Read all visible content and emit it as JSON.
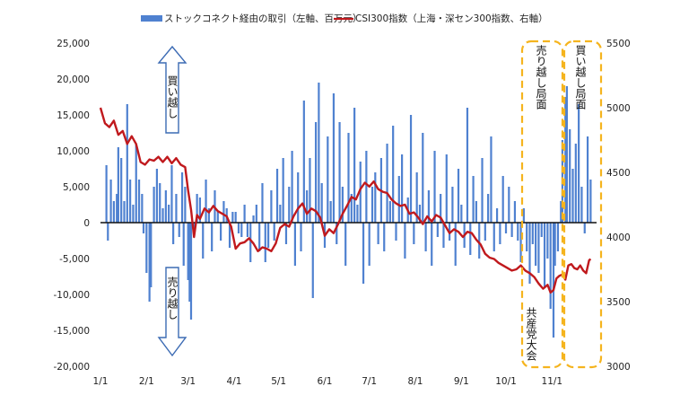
{
  "chart_data": {
    "type": "bar+line",
    "legend": [
      {
        "name": "ストックコネクト経由の取引（左軸、百万元）",
        "color": "#4f81d0"
      },
      {
        "name": "CSI300指数（上海・深セン300指数、右軸）",
        "color": "#c0191d"
      }
    ],
    "y_left": {
      "min": -20000,
      "max": 25000,
      "step": 5000,
      "ticks": [
        "25,000",
        "20,000",
        "15,000",
        "10,000",
        "5,000",
        "0",
        "-5,000",
        "-10,000",
        "-15,000",
        "-20,000"
      ]
    },
    "y_right": {
      "min": 3000,
      "max": 5500,
      "step": 500,
      "ticks": [
        "5500",
        "5000",
        "4500",
        "4000",
        "3500",
        "3000"
      ]
    },
    "x_ticks": [
      "1/1",
      "2/1",
      "3/1",
      "4/1",
      "5/1",
      "6/1",
      "7/1",
      "8/1",
      "9/1",
      "10/1",
      "11/1"
    ],
    "bars": [
      {
        "d": 4,
        "v": 8000
      },
      {
        "d": 5,
        "v": -2500
      },
      {
        "d": 7,
        "v": 6000
      },
      {
        "d": 9,
        "v": 3000
      },
      {
        "d": 11,
        "v": 4000
      },
      {
        "d": 12,
        "v": 10500
      },
      {
        "d": 14,
        "v": 9000
      },
      {
        "d": 16,
        "v": 3000
      },
      {
        "d": 18,
        "v": 16500
      },
      {
        "d": 20,
        "v": 6000
      },
      {
        "d": 22,
        "v": 2500
      },
      {
        "d": 24,
        "v": 11000
      },
      {
        "d": 26,
        "v": 6000
      },
      {
        "d": 28,
        "v": 4000
      },
      {
        "d": 29,
        "v": -1500
      },
      {
        "d": 31,
        "v": -7000
      },
      {
        "d": 33,
        "v": -11000
      },
      {
        "d": 34,
        "v": -9000
      },
      {
        "d": 36,
        "v": 5000
      },
      {
        "d": 38,
        "v": 7500
      },
      {
        "d": 40,
        "v": 5500
      },
      {
        "d": 42,
        "v": 2000
      },
      {
        "d": 44,
        "v": 4500
      },
      {
        "d": 46,
        "v": 2500
      },
      {
        "d": 48,
        "v": 8000
      },
      {
        "d": 49,
        "v": -3000
      },
      {
        "d": 51,
        "v": 4000
      },
      {
        "d": 53,
        "v": -2000
      },
      {
        "d": 55,
        "v": 7000
      },
      {
        "d": 56,
        "v": -6000
      },
      {
        "d": 57,
        "v": 5000
      },
      {
        "d": 59,
        "v": -8000
      },
      {
        "d": 60,
        "v": -11000
      },
      {
        "d": 61,
        "v": -13500
      },
      {
        "d": 63,
        "v": -2000
      },
      {
        "d": 65,
        "v": 4000
      },
      {
        "d": 67,
        "v": 3500
      },
      {
        "d": 69,
        "v": -5000
      },
      {
        "d": 71,
        "v": 6000
      },
      {
        "d": 73,
        "v": 2000
      },
      {
        "d": 75,
        "v": -4000
      },
      {
        "d": 77,
        "v": 4500
      },
      {
        "d": 79,
        "v": 1500
      },
      {
        "d": 81,
        "v": -2500
      },
      {
        "d": 83,
        "v": 3000
      },
      {
        "d": 85,
        "v": 2000
      },
      {
        "d": 87,
        "v": -3500
      },
      {
        "d": 89,
        "v": 1500
      },
      {
        "d": 91,
        "v": 1500
      },
      {
        "d": 93,
        "v": -1500
      },
      {
        "d": 95,
        "v": -2000
      },
      {
        "d": 97,
        "v": 2500
      },
      {
        "d": 99,
        "v": -2000
      },
      {
        "d": 101,
        "v": -5500
      },
      {
        "d": 103,
        "v": 1000
      },
      {
        "d": 105,
        "v": 2500
      },
      {
        "d": 107,
        "v": -4000
      },
      {
        "d": 109,
        "v": 5500
      },
      {
        "d": 111,
        "v": -5500
      },
      {
        "d": 113,
        "v": -3500
      },
      {
        "d": 115,
        "v": 4500
      },
      {
        "d": 117,
        "v": -2500
      },
      {
        "d": 119,
        "v": 7500
      },
      {
        "d": 121,
        "v": 2500
      },
      {
        "d": 123,
        "v": 9000
      },
      {
        "d": 125,
        "v": -3000
      },
      {
        "d": 127,
        "v": 5000
      },
      {
        "d": 129,
        "v": 10000
      },
      {
        "d": 131,
        "v": -6000
      },
      {
        "d": 133,
        "v": 7000
      },
      {
        "d": 135,
        "v": -4000
      },
      {
        "d": 137,
        "v": 17000
      },
      {
        "d": 139,
        "v": 4500
      },
      {
        "d": 141,
        "v": 9000
      },
      {
        "d": 143,
        "v": -10500
      },
      {
        "d": 145,
        "v": 14000
      },
      {
        "d": 147,
        "v": 19500
      },
      {
        "d": 149,
        "v": 5500
      },
      {
        "d": 151,
        "v": -3500
      },
      {
        "d": 153,
        "v": 12000
      },
      {
        "d": 155,
        "v": 3000
      },
      {
        "d": 157,
        "v": 18000
      },
      {
        "d": 159,
        "v": -3000
      },
      {
        "d": 161,
        "v": 14000
      },
      {
        "d": 163,
        "v": 5000
      },
      {
        "d": 165,
        "v": -6000
      },
      {
        "d": 167,
        "v": 12500
      },
      {
        "d": 169,
        "v": 4000
      },
      {
        "d": 171,
        "v": 16000
      },
      {
        "d": 173,
        "v": 2500
      },
      {
        "d": 175,
        "v": 8500
      },
      {
        "d": 177,
        "v": -8500
      },
      {
        "d": 179,
        "v": 10000
      },
      {
        "d": 181,
        "v": -6000
      },
      {
        "d": 183,
        "v": 5000
      },
      {
        "d": 185,
        "v": 7000
      },
      {
        "d": 187,
        "v": -3000
      },
      {
        "d": 189,
        "v": 9000
      },
      {
        "d": 191,
        "v": -4000
      },
      {
        "d": 193,
        "v": 11000
      },
      {
        "d": 195,
        "v": 3000
      },
      {
        "d": 197,
        "v": 13500
      },
      {
        "d": 199,
        "v": -2500
      },
      {
        "d": 201,
        "v": 6500
      },
      {
        "d": 203,
        "v": 9500
      },
      {
        "d": 205,
        "v": -5000
      },
      {
        "d": 207,
        "v": 3500
      },
      {
        "d": 209,
        "v": 15000
      },
      {
        "d": 211,
        "v": -3000
      },
      {
        "d": 213,
        "v": 7000
      },
      {
        "d": 215,
        "v": 2500
      },
      {
        "d": 217,
        "v": 12500
      },
      {
        "d": 219,
        "v": -4000
      },
      {
        "d": 221,
        "v": 4500
      },
      {
        "d": 223,
        "v": -6000
      },
      {
        "d": 225,
        "v": 10000
      },
      {
        "d": 227,
        "v": -2000
      },
      {
        "d": 229,
        "v": 4000
      },
      {
        "d": 231,
        "v": -3500
      },
      {
        "d": 233,
        "v": 9500
      },
      {
        "d": 235,
        "v": -2500
      },
      {
        "d": 237,
        "v": 5000
      },
      {
        "d": 239,
        "v": -6000
      },
      {
        "d": 241,
        "v": 7500
      },
      {
        "d": 243,
        "v": 2500
      },
      {
        "d": 245,
        "v": -3500
      },
      {
        "d": 247,
        "v": 16000
      },
      {
        "d": 249,
        "v": -4500
      },
      {
        "d": 251,
        "v": 6500
      },
      {
        "d": 253,
        "v": 3000
      },
      {
        "d": 255,
        "v": -5000
      },
      {
        "d": 257,
        "v": 9000
      },
      {
        "d": 259,
        "v": -2500
      },
      {
        "d": 261,
        "v": 4000
      },
      {
        "d": 263,
        "v": 12000
      },
      {
        "d": 265,
        "v": -4000
      },
      {
        "d": 267,
        "v": 2000
      },
      {
        "d": 269,
        "v": -3000
      },
      {
        "d": 271,
        "v": 6500
      },
      {
        "d": 273,
        "v": -1500
      },
      {
        "d": 275,
        "v": 5000
      },
      {
        "d": 277,
        "v": -2000
      },
      {
        "d": 279,
        "v": 3000
      },
      {
        "d": 281,
        "v": -2500
      },
      {
        "d": 283,
        "v": -5500
      },
      {
        "d": 285,
        "v": 2000
      },
      {
        "d": 287,
        "v": -4000
      },
      {
        "d": 289,
        "v": -8500
      },
      {
        "d": 291,
        "v": -3000
      },
      {
        "d": 293,
        "v": -6000
      },
      {
        "d": 295,
        "v": -7000
      },
      {
        "d": 297,
        "v": -2000
      },
      {
        "d": 299,
        "v": -9000
      },
      {
        "d": 301,
        "v": -5000
      },
      {
        "d": 303,
        "v": -12000
      },
      {
        "d": 305,
        "v": -16000
      },
      {
        "d": 306,
        "v": -6000
      },
      {
        "d": 308,
        "v": -4000
      },
      {
        "d": 310,
        "v": 3000
      },
      {
        "d": 311,
        "v": 11500
      },
      {
        "d": 313,
        "v": 17500
      },
      {
        "d": 314,
        "v": 19000
      },
      {
        "d": 316,
        "v": 13000
      },
      {
        "d": 318,
        "v": 7500
      },
      {
        "d": 320,
        "v": 11000
      },
      {
        "d": 322,
        "v": 16500
      },
      {
        "d": 324,
        "v": 5000
      },
      {
        "d": 326,
        "v": -1500
      },
      {
        "d": 328,
        "v": 12000
      },
      {
        "d": 330,
        "v": 6000
      }
    ],
    "csi300": [
      [
        0,
        5000
      ],
      [
        3,
        4880
      ],
      [
        6,
        4850
      ],
      [
        9,
        4900
      ],
      [
        12,
        4790
      ],
      [
        15,
        4820
      ],
      [
        18,
        4720
      ],
      [
        21,
        4780
      ],
      [
        24,
        4720
      ],
      [
        27,
        4580
      ],
      [
        30,
        4560
      ],
      [
        33,
        4600
      ],
      [
        36,
        4590
      ],
      [
        39,
        4620
      ],
      [
        42,
        4580
      ],
      [
        45,
        4620
      ],
      [
        48,
        4570
      ],
      [
        51,
        4610
      ],
      [
        54,
        4560
      ],
      [
        57,
        4540
      ],
      [
        59,
        4360
      ],
      [
        61,
        4210
      ],
      [
        63,
        4000
      ],
      [
        65,
        4170
      ],
      [
        67,
        4140
      ],
      [
        70,
        4220
      ],
      [
        73,
        4190
      ],
      [
        76,
        4240
      ],
      [
        79,
        4200
      ],
      [
        82,
        4180
      ],
      [
        85,
        4160
      ],
      [
        88,
        4080
      ],
      [
        91,
        3910
      ],
      [
        94,
        3950
      ],
      [
        97,
        3960
      ],
      [
        100,
        3990
      ],
      [
        103,
        3950
      ],
      [
        106,
        3890
      ],
      [
        109,
        3920
      ],
      [
        112,
        3910
      ],
      [
        115,
        3890
      ],
      [
        118,
        3950
      ],
      [
        121,
        4070
      ],
      [
        124,
        4100
      ],
      [
        127,
        4080
      ],
      [
        130,
        4160
      ],
      [
        133,
        4220
      ],
      [
        136,
        4260
      ],
      [
        139,
        4180
      ],
      [
        142,
        4220
      ],
      [
        145,
        4200
      ],
      [
        148,
        4150
      ],
      [
        151,
        4010
      ],
      [
        154,
        4060
      ],
      [
        157,
        4030
      ],
      [
        160,
        4100
      ],
      [
        163,
        4180
      ],
      [
        166,
        4240
      ],
      [
        169,
        4310
      ],
      [
        172,
        4290
      ],
      [
        175,
        4370
      ],
      [
        178,
        4420
      ],
      [
        181,
        4390
      ],
      [
        184,
        4430
      ],
      [
        187,
        4370
      ],
      [
        190,
        4350
      ],
      [
        193,
        4340
      ],
      [
        196,
        4290
      ],
      [
        199,
        4260
      ],
      [
        202,
        4240
      ],
      [
        205,
        4250
      ],
      [
        208,
        4180
      ],
      [
        211,
        4190
      ],
      [
        214,
        4150
      ],
      [
        217,
        4100
      ],
      [
        220,
        4160
      ],
      [
        223,
        4120
      ],
      [
        226,
        4170
      ],
      [
        229,
        4150
      ],
      [
        232,
        4090
      ],
      [
        235,
        4030
      ],
      [
        238,
        4060
      ],
      [
        241,
        4040
      ],
      [
        244,
        4000
      ],
      [
        247,
        4040
      ],
      [
        250,
        4030
      ],
      [
        253,
        3980
      ],
      [
        256,
        3940
      ],
      [
        259,
        3870
      ],
      [
        262,
        3840
      ],
      [
        265,
        3830
      ],
      [
        268,
        3800
      ],
      [
        271,
        3780
      ],
      [
        274,
        3760
      ],
      [
        277,
        3740
      ],
      [
        280,
        3750
      ],
      [
        283,
        3780
      ],
      [
        286,
        3740
      ],
      [
        289,
        3720
      ],
      [
        292,
        3690
      ],
      [
        295,
        3640
      ],
      [
        298,
        3600
      ],
      [
        301,
        3630
      ],
      [
        303,
        3570
      ],
      [
        305,
        3590
      ],
      [
        307,
        3680
      ],
      [
        309,
        3700
      ],
      [
        311,
        3710
      ],
      [
        313,
        3670
      ],
      [
        315,
        3780
      ],
      [
        317,
        3790
      ],
      [
        319,
        3760
      ],
      [
        321,
        3750
      ],
      [
        323,
        3780
      ],
      [
        325,
        3740
      ],
      [
        327,
        3720
      ],
      [
        329,
        3820
      ],
      [
        330,
        3830
      ]
    ],
    "annotations": {
      "buy_arrow": "買い越し",
      "sell_arrow": "売り越し",
      "box1_label": "売り越し局面",
      "box2_label": "買い越し局面",
      "event_label": "共産党大会"
    }
  }
}
